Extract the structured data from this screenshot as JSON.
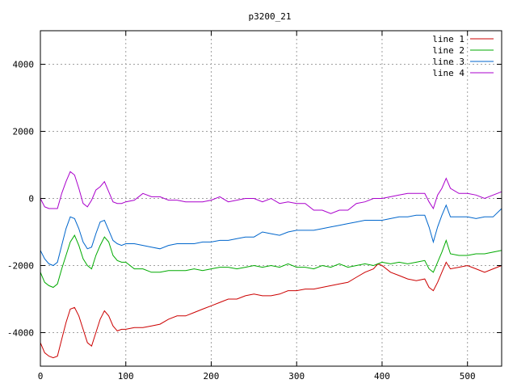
{
  "chart_data": {
    "type": "line",
    "title": "p3200_21",
    "xlabel": "",
    "ylabel": "",
    "xlim": [
      0,
      540
    ],
    "ylim": [
      -5000,
      5000
    ],
    "xticks": [
      0,
      100,
      200,
      300,
      400,
      500
    ],
    "yticks": [
      -4000,
      -2000,
      0,
      2000,
      4000
    ],
    "grid": true,
    "legend_position": "top-right",
    "series": [
      {
        "name": "line 1",
        "color": "#cc0000",
        "points": [
          [
            0,
            -4300
          ],
          [
            5,
            -4600
          ],
          [
            10,
            -4700
          ],
          [
            15,
            -4750
          ],
          [
            20,
            -4700
          ],
          [
            25,
            -4200
          ],
          [
            30,
            -3700
          ],
          [
            35,
            -3300
          ],
          [
            40,
            -3250
          ],
          [
            45,
            -3500
          ],
          [
            50,
            -3900
          ],
          [
            55,
            -4300
          ],
          [
            60,
            -4400
          ],
          [
            65,
            -4000
          ],
          [
            70,
            -3600
          ],
          [
            75,
            -3350
          ],
          [
            80,
            -3500
          ],
          [
            85,
            -3800
          ],
          [
            90,
            -3950
          ],
          [
            95,
            -3900
          ],
          [
            100,
            -3900
          ],
          [
            110,
            -3850
          ],
          [
            120,
            -3850
          ],
          [
            130,
            -3800
          ],
          [
            140,
            -3750
          ],
          [
            150,
            -3600
          ],
          [
            160,
            -3500
          ],
          [
            170,
            -3500
          ],
          [
            180,
            -3400
          ],
          [
            190,
            -3300
          ],
          [
            200,
            -3200
          ],
          [
            210,
            -3100
          ],
          [
            220,
            -3000
          ],
          [
            230,
            -3000
          ],
          [
            240,
            -2900
          ],
          [
            250,
            -2850
          ],
          [
            260,
            -2900
          ],
          [
            270,
            -2900
          ],
          [
            280,
            -2850
          ],
          [
            290,
            -2750
          ],
          [
            300,
            -2750
          ],
          [
            310,
            -2700
          ],
          [
            320,
            -2700
          ],
          [
            330,
            -2650
          ],
          [
            340,
            -2600
          ],
          [
            350,
            -2550
          ],
          [
            360,
            -2500
          ],
          [
            370,
            -2350
          ],
          [
            380,
            -2200
          ],
          [
            390,
            -2100
          ],
          [
            395,
            -1950
          ],
          [
            400,
            -2000
          ],
          [
            410,
            -2200
          ],
          [
            420,
            -2300
          ],
          [
            430,
            -2400
          ],
          [
            440,
            -2450
          ],
          [
            450,
            -2400
          ],
          [
            455,
            -2650
          ],
          [
            460,
            -2750
          ],
          [
            465,
            -2500
          ],
          [
            470,
            -2200
          ],
          [
            475,
            -1900
          ],
          [
            480,
            -2100
          ],
          [
            490,
            -2050
          ],
          [
            500,
            -2000
          ],
          [
            510,
            -2100
          ],
          [
            520,
            -2200
          ],
          [
            530,
            -2100
          ],
          [
            540,
            -2000
          ]
        ]
      },
      {
        "name": "line 2",
        "color": "#00aa00",
        "points": [
          [
            0,
            -2200
          ],
          [
            5,
            -2500
          ],
          [
            10,
            -2600
          ],
          [
            15,
            -2650
          ],
          [
            20,
            -2550
          ],
          [
            25,
            -2100
          ],
          [
            30,
            -1700
          ],
          [
            35,
            -1300
          ],
          [
            40,
            -1100
          ],
          [
            45,
            -1400
          ],
          [
            50,
            -1800
          ],
          [
            55,
            -2000
          ],
          [
            60,
            -2100
          ],
          [
            65,
            -1700
          ],
          [
            70,
            -1400
          ],
          [
            75,
            -1150
          ],
          [
            80,
            -1300
          ],
          [
            85,
            -1700
          ],
          [
            90,
            -1850
          ],
          [
            95,
            -1900
          ],
          [
            100,
            -1900
          ],
          [
            110,
            -2100
          ],
          [
            120,
            -2100
          ],
          [
            130,
            -2200
          ],
          [
            140,
            -2200
          ],
          [
            150,
            -2150
          ],
          [
            160,
            -2150
          ],
          [
            170,
            -2150
          ],
          [
            180,
            -2100
          ],
          [
            190,
            -2150
          ],
          [
            200,
            -2100
          ],
          [
            210,
            -2050
          ],
          [
            220,
            -2050
          ],
          [
            230,
            -2100
          ],
          [
            240,
            -2050
          ],
          [
            250,
            -2000
          ],
          [
            260,
            -2050
          ],
          [
            270,
            -2000
          ],
          [
            280,
            -2050
          ],
          [
            290,
            -1950
          ],
          [
            300,
            -2050
          ],
          [
            310,
            -2050
          ],
          [
            320,
            -2100
          ],
          [
            330,
            -2000
          ],
          [
            340,
            -2050
          ],
          [
            350,
            -1950
          ],
          [
            360,
            -2050
          ],
          [
            370,
            -2000
          ],
          [
            380,
            -1950
          ],
          [
            390,
            -2000
          ],
          [
            400,
            -1900
          ],
          [
            410,
            -1950
          ],
          [
            420,
            -1900
          ],
          [
            430,
            -1950
          ],
          [
            440,
            -1900
          ],
          [
            450,
            -1850
          ],
          [
            455,
            -2100
          ],
          [
            460,
            -2200
          ],
          [
            465,
            -1900
          ],
          [
            470,
            -1600
          ],
          [
            475,
            -1250
          ],
          [
            480,
            -1650
          ],
          [
            490,
            -1700
          ],
          [
            500,
            -1700
          ],
          [
            510,
            -1650
          ],
          [
            520,
            -1650
          ],
          [
            530,
            -1600
          ],
          [
            540,
            -1550
          ]
        ]
      },
      {
        "name": "line 3",
        "color": "#0066cc",
        "points": [
          [
            0,
            -1550
          ],
          [
            5,
            -1800
          ],
          [
            10,
            -1950
          ],
          [
            15,
            -2000
          ],
          [
            20,
            -1900
          ],
          [
            25,
            -1400
          ],
          [
            30,
            -900
          ],
          [
            35,
            -550
          ],
          [
            40,
            -600
          ],
          [
            45,
            -900
          ],
          [
            50,
            -1300
          ],
          [
            55,
            -1500
          ],
          [
            60,
            -1450
          ],
          [
            65,
            -1050
          ],
          [
            70,
            -700
          ],
          [
            75,
            -650
          ],
          [
            80,
            -950
          ],
          [
            85,
            -1250
          ],
          [
            90,
            -1350
          ],
          [
            95,
            -1400
          ],
          [
            100,
            -1350
          ],
          [
            110,
            -1350
          ],
          [
            120,
            -1400
          ],
          [
            130,
            -1450
          ],
          [
            140,
            -1500
          ],
          [
            150,
            -1400
          ],
          [
            160,
            -1350
          ],
          [
            170,
            -1350
          ],
          [
            180,
            -1350
          ],
          [
            190,
            -1300
          ],
          [
            200,
            -1300
          ],
          [
            210,
            -1250
          ],
          [
            220,
            -1250
          ],
          [
            230,
            -1200
          ],
          [
            240,
            -1150
          ],
          [
            250,
            -1150
          ],
          [
            260,
            -1000
          ],
          [
            270,
            -1050
          ],
          [
            280,
            -1100
          ],
          [
            290,
            -1000
          ],
          [
            300,
            -950
          ],
          [
            310,
            -950
          ],
          [
            320,
            -950
          ],
          [
            330,
            -900
          ],
          [
            340,
            -850
          ],
          [
            350,
            -800
          ],
          [
            360,
            -750
          ],
          [
            370,
            -700
          ],
          [
            380,
            -650
          ],
          [
            390,
            -650
          ],
          [
            400,
            -650
          ],
          [
            410,
            -600
          ],
          [
            420,
            -550
          ],
          [
            430,
            -550
          ],
          [
            440,
            -500
          ],
          [
            450,
            -500
          ],
          [
            455,
            -850
          ],
          [
            460,
            -1300
          ],
          [
            465,
            -850
          ],
          [
            470,
            -500
          ],
          [
            475,
            -200
          ],
          [
            480,
            -550
          ],
          [
            490,
            -550
          ],
          [
            500,
            -550
          ],
          [
            510,
            -600
          ],
          [
            520,
            -550
          ],
          [
            530,
            -550
          ],
          [
            540,
            -300
          ]
        ]
      },
      {
        "name": "line 4",
        "color": "#aa00cc",
        "points": [
          [
            0,
            0
          ],
          [
            5,
            -250
          ],
          [
            10,
            -300
          ],
          [
            15,
            -300
          ],
          [
            20,
            -300
          ],
          [
            25,
            150
          ],
          [
            30,
            500
          ],
          [
            35,
            800
          ],
          [
            40,
            700
          ],
          [
            45,
            300
          ],
          [
            50,
            -150
          ],
          [
            55,
            -250
          ],
          [
            60,
            -50
          ],
          [
            65,
            250
          ],
          [
            70,
            350
          ],
          [
            75,
            500
          ],
          [
            80,
            200
          ],
          [
            85,
            -100
          ],
          [
            90,
            -150
          ],
          [
            95,
            -150
          ],
          [
            100,
            -100
          ],
          [
            110,
            -50
          ],
          [
            120,
            150
          ],
          [
            130,
            50
          ],
          [
            140,
            50
          ],
          [
            150,
            -50
          ],
          [
            160,
            -50
          ],
          [
            170,
            -100
          ],
          [
            180,
            -100
          ],
          [
            190,
            -100
          ],
          [
            200,
            -50
          ],
          [
            210,
            50
          ],
          [
            220,
            -100
          ],
          [
            230,
            -50
          ],
          [
            240,
            0
          ],
          [
            250,
            0
          ],
          [
            260,
            -100
          ],
          [
            270,
            0
          ],
          [
            280,
            -150
          ],
          [
            290,
            -100
          ],
          [
            300,
            -150
          ],
          [
            310,
            -150
          ],
          [
            320,
            -350
          ],
          [
            330,
            -350
          ],
          [
            340,
            -450
          ],
          [
            350,
            -350
          ],
          [
            360,
            -350
          ],
          [
            370,
            -150
          ],
          [
            380,
            -100
          ],
          [
            390,
            0
          ],
          [
            400,
            0
          ],
          [
            410,
            50
          ],
          [
            420,
            100
          ],
          [
            430,
            150
          ],
          [
            440,
            150
          ],
          [
            450,
            150
          ],
          [
            455,
            -100
          ],
          [
            460,
            -300
          ],
          [
            465,
            100
          ],
          [
            470,
            300
          ],
          [
            475,
            600
          ],
          [
            480,
            300
          ],
          [
            490,
            150
          ],
          [
            500,
            150
          ],
          [
            510,
            100
          ],
          [
            520,
            0
          ],
          [
            530,
            100
          ],
          [
            540,
            200
          ]
        ]
      }
    ]
  }
}
